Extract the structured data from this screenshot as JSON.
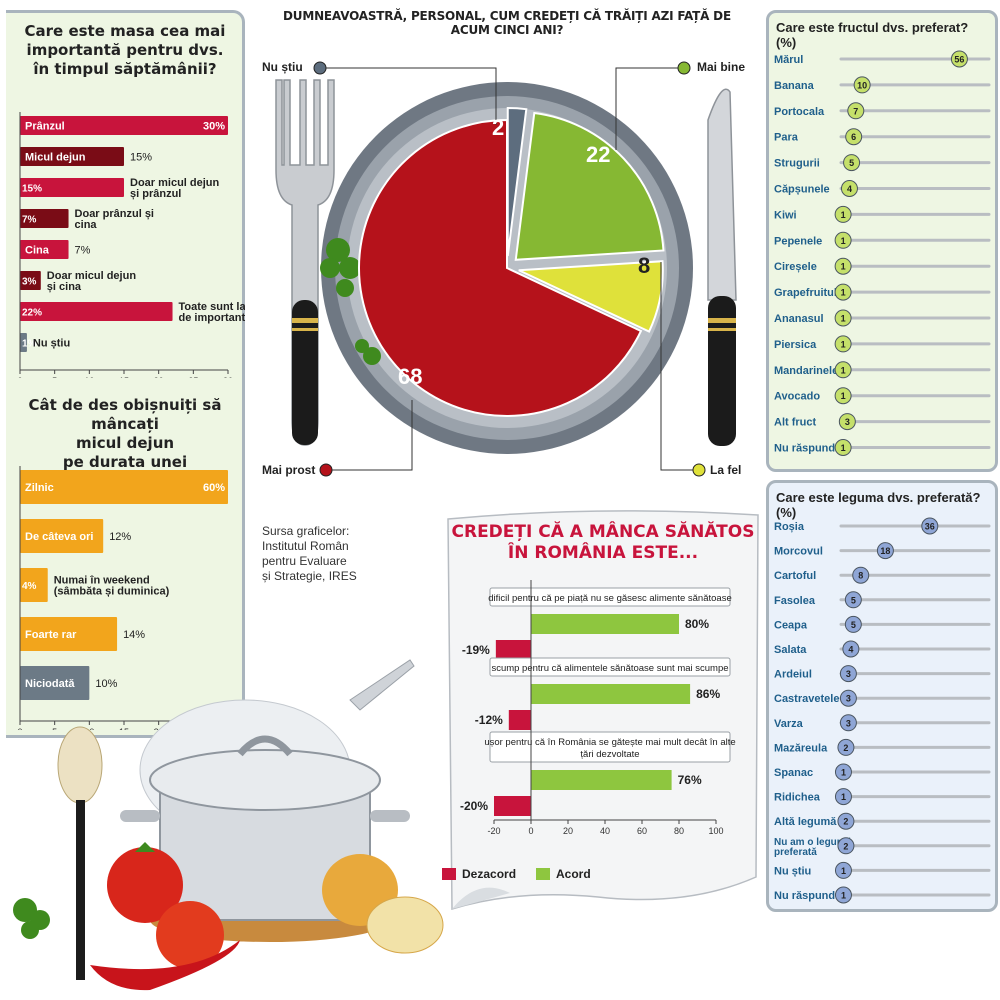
{
  "colors": {
    "crimson": "#c8143c",
    "maroon": "#7a0c16",
    "orange": "#f2a51c",
    "slate": "#6c7a86",
    "green": "#8ec63f",
    "yellow": "#e2e43c",
    "pie_red": "#b5121b",
    "pie_green": "#86b833",
    "pie_yellow": "#dfe13a",
    "pie_gray": "#5d6d7e",
    "fruit_bubble": "#c5e06a",
    "veg_bubble": "#8fa6d6",
    "left_panel_bg": "#eef6e3",
    "fruit_panel_bg": "#eef6e3",
    "veg_panel_bg": "#eaf1fa"
  },
  "source_note": [
    "Sursa graficelor:",
    "Institutul Român",
    "pentru Evaluare",
    "și Strategie, IRES"
  ],
  "chart_data": [
    {
      "id": "meal",
      "type": "bar",
      "orientation": "horizontal",
      "title": [
        "Care este masa cea mai",
        "importantă pentru dvs.",
        "în timpul săptămânii?"
      ],
      "categories": [
        "Prânzul",
        "Micul dejun",
        "Doar micul dejun și prânzul",
        "Doar prânzul și cina",
        "Cina",
        "Doar micul dejun și cina",
        "Toate sunt la fel de importante",
        "Nu știu"
      ],
      "values": [
        30,
        15,
        15,
        7,
        7,
        3,
        22,
        1
      ],
      "value_labels": [
        "30%",
        "15%",
        "15%",
        "7%",
        "7%",
        "3%",
        "22%",
        "1%"
      ],
      "xlim": [
        0,
        30
      ],
      "xticks": [
        "0",
        "5",
        "10",
        "15",
        "20",
        "25",
        "30"
      ],
      "bar_colors": [
        "crimson",
        "maroon",
        "crimson",
        "maroon",
        "crimson",
        "maroon",
        "crimson",
        "slate"
      ]
    },
    {
      "id": "breakfast",
      "type": "bar",
      "orientation": "horizontal",
      "title": [
        "Cât de des obișnuiți să mâncați",
        "micul dejun",
        "pe durata unei săptămâni?"
      ],
      "categories": [
        "Zilnic",
        "De câteva ori",
        "Numai în weekend (sâmbăta și duminica)",
        "Foarte rar",
        "Niciodată"
      ],
      "values": [
        60,
        12,
        4,
        14,
        10
      ],
      "value_labels": [
        "60%",
        "12%",
        "4%",
        "14%",
        "10%"
      ],
      "xlim": [
        0,
        30
      ],
      "xticks": [
        "0",
        "5",
        "10",
        "15",
        "20",
        "25"
      ],
      "bar_colors": [
        "orange",
        "orange",
        "orange",
        "orange",
        "slate"
      ]
    },
    {
      "id": "life",
      "type": "pie",
      "title": "DUMNEAVOASTRĂ, PERSONAL, CUM CREDEȚI CĂ TRĂIȚI AZI FAȚĂ DE ACUM CINCI ANI?",
      "slices": [
        {
          "label": "Mai prost",
          "value": 68
        },
        {
          "label": "Nu știu",
          "value": 2
        },
        {
          "label": "Mai bine",
          "value": 22
        },
        {
          "label": "La fel",
          "value": 8
        }
      ]
    },
    {
      "id": "fruit",
      "type": "scatter",
      "title": "Care este fructul dvs. preferat? (%)",
      "categories": [
        "Mărul",
        "Banana",
        "Portocala",
        "Para",
        "Strugurii",
        "Căpșunele",
        "Kiwi",
        "Pepenele",
        "Cireșele",
        "Grapefruitul",
        "Ananasul",
        "Piersica",
        "Mandarinele",
        "Avocado",
        "Alt fruct",
        "Nu răspund"
      ],
      "values": [
        56,
        10,
        7,
        6,
        5,
        4,
        1,
        1,
        1,
        1,
        1,
        1,
        1,
        1,
        3,
        1
      ],
      "xlim": [
        0,
        70
      ]
    },
    {
      "id": "veg",
      "type": "scatter",
      "title": "Care este leguma dvs. preferată? (%)",
      "categories": [
        "Roșia",
        "Morcovul",
        "Cartoful",
        "Fasolea",
        "Ceapa",
        "Salata",
        "Ardeiul",
        "Castravetele",
        "Varza",
        "Mazăreula",
        "Spanac",
        "Ridichea",
        "Altă legumă",
        "Nu am o legumă preferată",
        "Nu știu",
        "Nu răspund"
      ],
      "values": [
        36,
        18,
        8,
        5,
        5,
        4,
        3,
        3,
        3,
        2,
        1,
        1,
        2,
        2,
        1,
        1
      ],
      "xlim": [
        0,
        60
      ]
    },
    {
      "id": "healthy",
      "type": "bar",
      "orientation": "horizontal",
      "title": [
        "CREDEȚI CĂ A MÂNCA SĂNĂTOS",
        "ÎN ROMÂNIA ESTE..."
      ],
      "categories": [
        "dificil pentru că pe piață nu se găsesc alimente sănătoase",
        "scump pentru că alimentele sănătoase sunt mai scumpe",
        "ușor pentru că în România se gătește mai mult decât în alte țări dezvoltate"
      ],
      "series": [
        {
          "name": "Dezacord",
          "values": [
            -19,
            -12,
            -20
          ],
          "value_labels": [
            "-19%",
            "-12%",
            "-20%"
          ]
        },
        {
          "name": "Acord",
          "values": [
            80,
            86,
            76
          ],
          "value_labels": [
            "80%",
            "86%",
            "76%"
          ]
        }
      ],
      "xlim": [
        -20,
        100
      ],
      "xticks": [
        "-20",
        "0",
        "20",
        "40",
        "60",
        "80",
        "100"
      ]
    }
  ]
}
